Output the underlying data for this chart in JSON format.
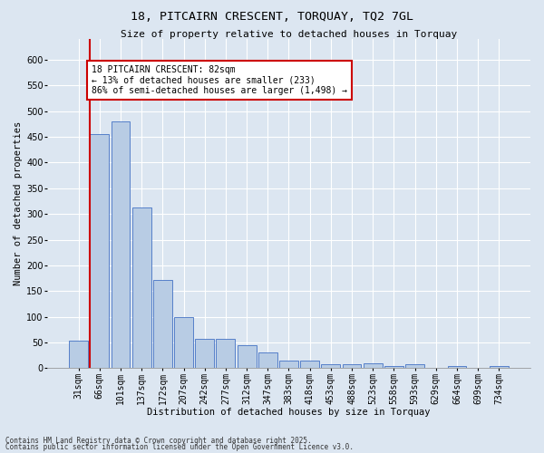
{
  "title": "18, PITCAIRN CRESCENT, TORQUAY, TQ2 7GL",
  "subtitle": "Size of property relative to detached houses in Torquay",
  "xlabel": "Distribution of detached houses by size in Torquay",
  "ylabel": "Number of detached properties",
  "footnote1": "Contains HM Land Registry data © Crown copyright and database right 2025.",
  "footnote2": "Contains public sector information licensed under the Open Government Licence v3.0.",
  "categories": [
    "31sqm",
    "66sqm",
    "101sqm",
    "137sqm",
    "172sqm",
    "207sqm",
    "242sqm",
    "277sqm",
    "312sqm",
    "347sqm",
    "383sqm",
    "418sqm",
    "453sqm",
    "488sqm",
    "523sqm",
    "558sqm",
    "593sqm",
    "629sqm",
    "664sqm",
    "699sqm",
    "734sqm"
  ],
  "values": [
    53,
    456,
    480,
    312,
    172,
    100,
    58,
    58,
    44,
    30,
    14,
    14,
    8,
    8,
    9,
    5,
    8,
    0,
    4,
    0,
    4
  ],
  "bar_color": "#b8cce4",
  "bar_edge_color": "#4472c4",
  "ylim": [
    0,
    640
  ],
  "yticks": [
    0,
    50,
    100,
    150,
    200,
    250,
    300,
    350,
    400,
    450,
    500,
    550,
    600
  ],
  "annotation_text": "18 PITCAIRN CRESCENT: 82sqm\n← 13% of detached houses are smaller (233)\n86% of semi-detached houses are larger (1,498) →",
  "annotation_box_facecolor": "#ffffff",
  "annotation_box_edgecolor": "#cc0000",
  "bg_color": "#dce6f1",
  "plot_bg_color": "#dce6f1",
  "grid_color": "#ffffff",
  "redline_color": "#cc0000",
  "title_fontsize": 9.5,
  "subtitle_fontsize": 8,
  "axis_label_fontsize": 7.5,
  "tick_fontsize": 7,
  "annot_fontsize": 7,
  "footnote_fontsize": 5.5
}
